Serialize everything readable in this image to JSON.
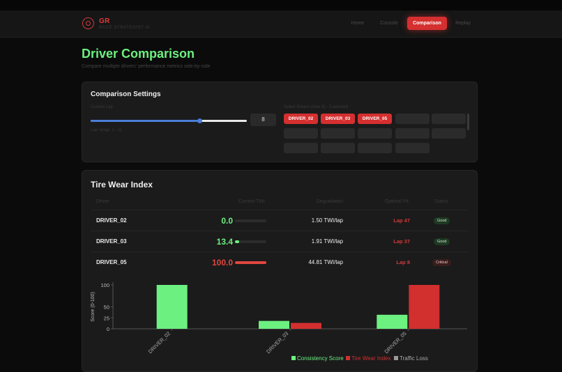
{
  "nav": {
    "brand": "GR",
    "brand_sub": "RACE STRATEGIST AI",
    "items": [
      {
        "label": "Home",
        "active": false
      },
      {
        "label": "Console",
        "active": false
      },
      {
        "label": "Comparison",
        "active": true
      },
      {
        "label": "Replay",
        "active": false
      }
    ]
  },
  "page": {
    "title": "Driver Comparison",
    "subtitle": "Compare multiple drivers' performance metrics side-by-side"
  },
  "settings": {
    "title": "Comparison Settings",
    "current_lap_label": "Current Lap",
    "lap_value": "8",
    "lap_range_text": "Lap range: 1 - 11",
    "slider_min": 1,
    "slider_max": 11,
    "slider_value": 8,
    "select_label": "Select Drivers (max 8) - 3 selected",
    "chips": [
      {
        "label": "DRIVER_02",
        "selected": true
      },
      {
        "label": "DRIVER_03",
        "selected": true
      },
      {
        "label": "DRIVER_05",
        "selected": true
      },
      {
        "label": "",
        "selected": false
      },
      {
        "label": "",
        "selected": false
      },
      {
        "label": "",
        "selected": false
      },
      {
        "label": "",
        "selected": false
      },
      {
        "label": "",
        "selected": false
      },
      {
        "label": "",
        "selected": false
      },
      {
        "label": "",
        "selected": false
      },
      {
        "label": "",
        "selected": false
      },
      {
        "label": "",
        "selected": false
      },
      {
        "label": "",
        "selected": false
      },
      {
        "label": "",
        "selected": false
      }
    ]
  },
  "tire": {
    "title": "Tire Wear Index",
    "headers": {
      "driver": "Driver",
      "current": "Current TWI",
      "degradation": "Degradation",
      "pit": "Optimal Pit",
      "status": "Status"
    },
    "rows": [
      {
        "driver": "DRIVER_02",
        "twi": "0.0",
        "twi_value": 0.0,
        "twi_color": "#6cf080",
        "degradation": "1.50 TWI/lap",
        "pit": "Lap 47",
        "status": "Good",
        "status_type": "good"
      },
      {
        "driver": "DRIVER_03",
        "twi": "13.4",
        "twi_value": 13.4,
        "twi_color": "#6cf080",
        "degradation": "1.91 TWI/lap",
        "pit": "Lap 37",
        "status": "Good",
        "status_type": "good"
      },
      {
        "driver": "DRIVER_05",
        "twi": "100.0",
        "twi_value": 100.0,
        "twi_color": "#e0463f",
        "degradation": "44.81 TWI/lap",
        "pit": "Lap 8",
        "status": "Critical",
        "status_type": "crit"
      }
    ]
  },
  "chart_data": {
    "type": "bar",
    "categories": [
      "DRIVER_02",
      "DRIVER_03",
      "DRIVER_05"
    ],
    "series": [
      {
        "name": "Consistency Score",
        "color": "#6cf080",
        "values": [
          100,
          18,
          32
        ]
      },
      {
        "name": "Tire Wear Index",
        "color": "#d22f2f",
        "values": [
          0,
          13.4,
          100
        ]
      },
      {
        "name": "Traffic Loss",
        "color": "#9a9a9a",
        "values": [
          0,
          0,
          0
        ]
      }
    ],
    "ylabel": "Score (0-100)",
    "yticks": [
      0,
      25,
      50,
      100
    ],
    "ylim": [
      0,
      100
    ],
    "grid": false,
    "legend": "bottom"
  }
}
